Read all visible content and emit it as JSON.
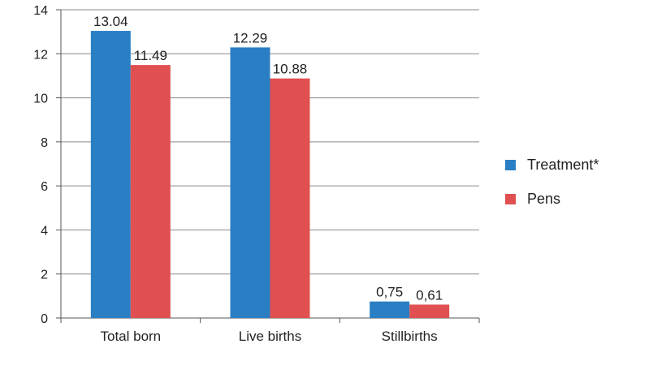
{
  "chart_data": {
    "type": "bar",
    "categories": [
      "Total born",
      "Live births",
      "Stillbirths"
    ],
    "series": [
      {
        "name": "Treatment*",
        "color": "#2a7ec4",
        "values": [
          13.04,
          12.29,
          0.75
        ],
        "labels": [
          "13.04",
          "12.29",
          "0,75"
        ]
      },
      {
        "name": "Pens",
        "color": "#e05050",
        "values": [
          11.49,
          10.88,
          0.61
        ],
        "labels": [
          "11.49",
          "10.88",
          "0,61"
        ]
      }
    ],
    "yticks": [
      "0",
      "2",
      "4",
      "6",
      "8",
      "10",
      "12",
      "14"
    ],
    "ylim": [
      0,
      14
    ],
    "grid": true,
    "legend_position": "right",
    "title": "",
    "xlabel": "",
    "ylabel": ""
  }
}
